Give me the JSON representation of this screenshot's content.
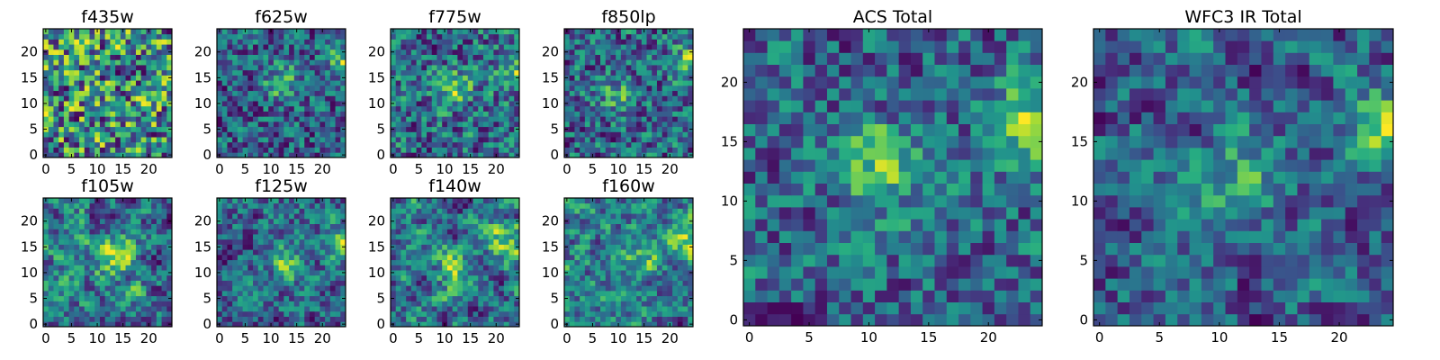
{
  "chart_data": [
    {
      "type": "heatmap",
      "title": "f435w",
      "grid": 25,
      "xticks": [
        "0",
        "5",
        "10",
        "15",
        "20"
      ],
      "yticks": [
        "0",
        "5",
        "10",
        "15",
        "20"
      ],
      "xlim": [
        0,
        24
      ],
      "ylim": [
        0,
        24
      ],
      "colormap": "viridis",
      "seed": 11,
      "smooth": 0.15,
      "blobs": []
    },
    {
      "type": "heatmap",
      "title": "f625w",
      "grid": 25,
      "xticks": [
        "0",
        "5",
        "10",
        "15",
        "20"
      ],
      "yticks": [
        "0",
        "5",
        "10",
        "15",
        "20"
      ],
      "xlim": [
        0,
        24
      ],
      "ylim": [
        0,
        24
      ],
      "colormap": "viridis",
      "seed": 23,
      "smooth": 0.25,
      "blobs": [
        {
          "x": 12,
          "y": 14,
          "a": 0.45
        },
        {
          "x": 24,
          "y": 18,
          "a": 0.5
        }
      ]
    },
    {
      "type": "heatmap",
      "title": "f775w",
      "grid": 25,
      "xticks": [
        "0",
        "5",
        "10",
        "15",
        "20"
      ],
      "yticks": [
        "0",
        "5",
        "10",
        "15",
        "20"
      ],
      "xlim": [
        0,
        24
      ],
      "ylim": [
        0,
        24
      ],
      "colormap": "viridis",
      "seed": 37,
      "smooth": 0.25,
      "blobs": [
        {
          "x": 12,
          "y": 13,
          "a": 0.45
        },
        {
          "x": 24,
          "y": 17,
          "a": 0.5
        }
      ]
    },
    {
      "type": "heatmap",
      "title": "f850lp",
      "grid": 25,
      "xticks": [
        "0",
        "5",
        "10",
        "15",
        "20"
      ],
      "yticks": [
        "0",
        "5",
        "10",
        "15",
        "20"
      ],
      "xlim": [
        0,
        24
      ],
      "ylim": [
        0,
        24
      ],
      "colormap": "viridis",
      "seed": 41,
      "smooth": 0.2,
      "blobs": [
        {
          "x": 10,
          "y": 12,
          "a": 0.35
        },
        {
          "x": 24,
          "y": 18,
          "a": 0.45
        }
      ]
    },
    {
      "type": "heatmap",
      "title": "f105w",
      "grid": 25,
      "xticks": [
        "0",
        "5",
        "10",
        "15",
        "20"
      ],
      "yticks": [
        "0",
        "5",
        "10",
        "15",
        "20"
      ],
      "xlim": [
        0,
        24
      ],
      "ylim": [
        0,
        24
      ],
      "colormap": "viridis",
      "seed": 53,
      "smooth": 0.55,
      "blobs": [
        {
          "x": 14,
          "y": 13,
          "a": 0.4
        }
      ]
    },
    {
      "type": "heatmap",
      "title": "f125w",
      "grid": 25,
      "xticks": [
        "0",
        "5",
        "10",
        "15",
        "20"
      ],
      "yticks": [
        "0",
        "5",
        "10",
        "15",
        "20"
      ],
      "xlim": [
        0,
        24
      ],
      "ylim": [
        0,
        24
      ],
      "colormap": "viridis",
      "seed": 67,
      "smooth": 0.5,
      "blobs": [
        {
          "x": 13,
          "y": 12,
          "a": 0.35
        },
        {
          "x": 24,
          "y": 16,
          "a": 0.5
        }
      ]
    },
    {
      "type": "heatmap",
      "title": "f140w",
      "grid": 25,
      "xticks": [
        "0",
        "5",
        "10",
        "15",
        "20"
      ],
      "yticks": [
        "0",
        "5",
        "10",
        "15",
        "20"
      ],
      "xlim": [
        0,
        24
      ],
      "ylim": [
        0,
        24
      ],
      "colormap": "viridis",
      "seed": 71,
      "smooth": 0.55,
      "blobs": [
        {
          "x": 12,
          "y": 11,
          "a": 0.35
        },
        {
          "x": 22,
          "y": 16,
          "a": 0.4
        }
      ]
    },
    {
      "type": "heatmap",
      "title": "f160w",
      "grid": 25,
      "xticks": [
        "0",
        "5",
        "10",
        "15",
        "20"
      ],
      "yticks": [
        "0",
        "5",
        "10",
        "15",
        "20"
      ],
      "xlim": [
        0,
        24
      ],
      "ylim": [
        0,
        24
      ],
      "colormap": "viridis",
      "seed": 83,
      "smooth": 0.5,
      "blobs": [
        {
          "x": 14,
          "y": 12,
          "a": 0.35
        },
        {
          "x": 24,
          "y": 16,
          "a": 0.5
        }
      ]
    },
    {
      "type": "heatmap",
      "title": "ACS Total",
      "grid": 25,
      "xticks": [
        "0",
        "5",
        "10",
        "15",
        "20"
      ],
      "yticks": [
        "0",
        "5",
        "10",
        "15",
        "20"
      ],
      "xlim": [
        0,
        24
      ],
      "ylim": [
        0,
        24
      ],
      "colormap": "viridis",
      "seed": 97,
      "smooth": 0.3,
      "blobs": [
        {
          "x": 11,
          "y": 13,
          "a": 0.55
        },
        {
          "x": 24,
          "y": 17,
          "a": 0.55
        }
      ]
    },
    {
      "type": "heatmap",
      "title": "WFC3 IR Total",
      "grid": 25,
      "xticks": [
        "0",
        "5",
        "10",
        "15",
        "20"
      ],
      "yticks": [
        "0",
        "5",
        "10",
        "15",
        "20"
      ],
      "xlim": [
        0,
        24
      ],
      "ylim": [
        0,
        24
      ],
      "colormap": "viridis",
      "seed": 101,
      "smooth": 0.45,
      "blobs": [
        {
          "x": 12,
          "y": 12,
          "a": 0.45
        },
        {
          "x": 24,
          "y": 16,
          "a": 0.55
        }
      ]
    }
  ],
  "colors": {
    "viridis_low": "#440154",
    "viridis_mid": "#21918c",
    "viridis_high": "#fde725",
    "frame": "#000000"
  }
}
